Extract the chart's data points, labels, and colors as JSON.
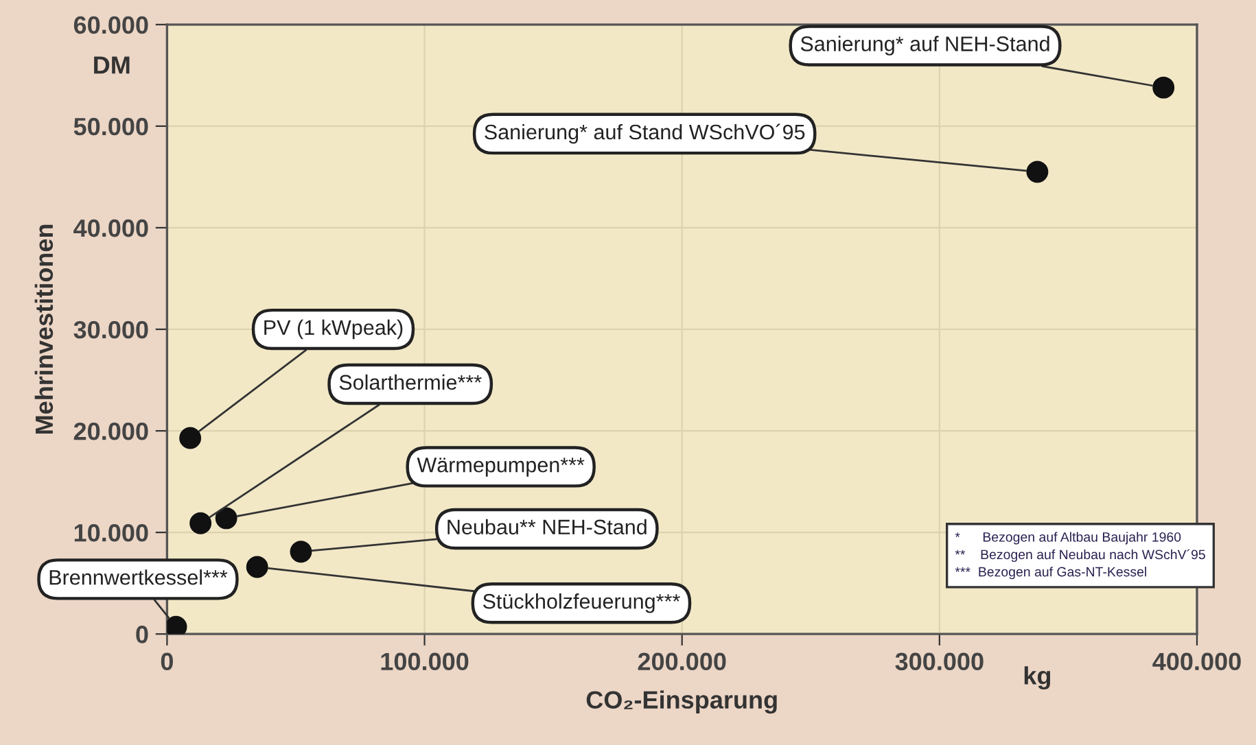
{
  "chart_data": {
    "type": "scatter",
    "xlabel": "CO₂-Einsparung",
    "ylabel": "Mehrinvestitionen",
    "x": [
      9000,
      13000,
      23000,
      52000,
      35000,
      3500,
      387000,
      338000
    ],
    "series": [
      {
        "color": "#111111",
        "values": [
          19300,
          10900,
          11400,
          8100,
          6600,
          700,
          53800,
          45500
        ]
      }
    ],
    "marker": "circle",
    "xlim": [
      0,
      400000
    ],
    "ylim": [
      0,
      60000
    ],
    "xticks": [
      {
        "value": 0,
        "label": "0"
      },
      {
        "value": 100000,
        "label": "100.000"
      },
      {
        "value": 200000,
        "label": "200.000"
      },
      {
        "value": 300000,
        "label": "300.000"
      },
      {
        "value": 400000,
        "label": "400.000"
      }
    ],
    "yticks": [
      {
        "value": 0,
        "label": "0"
      },
      {
        "value": 10000,
        "label": "10.000"
      },
      {
        "value": 20000,
        "label": "20.000"
      },
      {
        "value": 30000,
        "label": "30.000"
      },
      {
        "value": 40000,
        "label": "40.000"
      },
      {
        "value": 50000,
        "label": "50.000"
      },
      {
        "value": 60000,
        "label": "60.000"
      }
    ],
    "grid": true,
    "annotations": [
      {
        "text": "PV (1 kWpeak)",
        "x": 9000,
        "y": 19300
      },
      {
        "text": "Solarthermie***",
        "x": 13000,
        "y": 10900
      },
      {
        "text": "Wärmepumpen***",
        "x": 23000,
        "y": 11400
      },
      {
        "text": "Neubau** NEH-Stand",
        "x": 52000,
        "y": 8100
      },
      {
        "text": "Stückholzfeuerung***",
        "x": 35000,
        "y": 6600
      },
      {
        "text": "Brennwertkessel***",
        "x": 3500,
        "y": 700
      },
      {
        "text": "Sanierung* auf NEH-Stand",
        "x": 387000,
        "y": 53800
      },
      {
        "text": "Sanierung* auf Stand WSchVO´95",
        "x": 338000,
        "y": 45500
      },
      "DM",
      "kg",
      "*      Bezogen auf Altbau Baujahr 1960",
      "**    Bezogen auf Neubau nach WSchV´95",
      "***  Bezogen auf Gas-NT-Kessel"
    ]
  }
}
